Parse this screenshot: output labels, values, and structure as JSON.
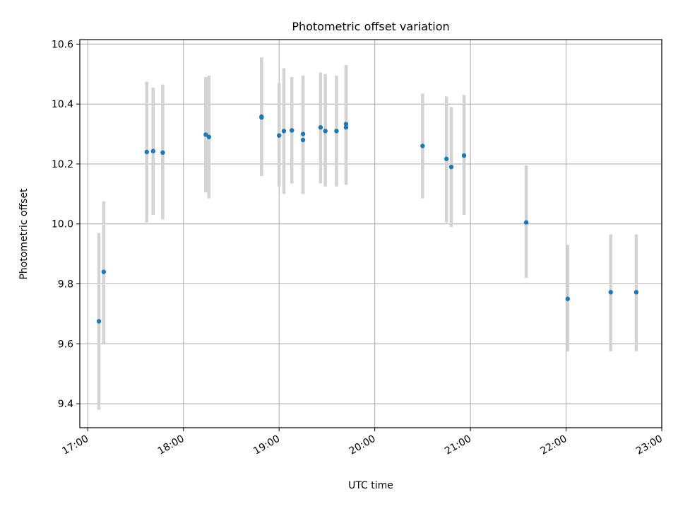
{
  "chart_data": {
    "type": "scatter",
    "title": "Photometric offset variation",
    "xlabel": "UTC time",
    "ylabel": "Photometric offset",
    "x_tick_labels": [
      "17:00",
      "18:00",
      "19:00",
      "20:00",
      "21:00",
      "22:00",
      "23:00"
    ],
    "y_tick_labels": [
      "9.4",
      "9.6",
      "9.8",
      "10.0",
      "10.2",
      "10.4",
      "10.6"
    ],
    "xlim": [
      "16:55",
      "23:00"
    ],
    "ylim": [
      9.32,
      10.615
    ],
    "grid": true,
    "point_color": "#1f77b4",
    "errorbar_color": "#d3d3d3",
    "points": [
      {
        "x": "17:07",
        "y": 9.675,
        "ylow": 9.38,
        "yhigh": 9.97
      },
      {
        "x": "17:10",
        "y": 9.84,
        "ylow": 9.6,
        "yhigh": 10.075
      },
      {
        "x": "17:37",
        "y": 10.24,
        "ylow": 10.005,
        "yhigh": 10.475
      },
      {
        "x": "17:41",
        "y": 10.243,
        "ylow": 10.03,
        "yhigh": 10.455
      },
      {
        "x": "17:47",
        "y": 10.238,
        "ylow": 10.015,
        "yhigh": 10.465
      },
      {
        "x": "18:14",
        "y": 10.298,
        "ylow": 10.105,
        "yhigh": 10.49
      },
      {
        "x": "18:16",
        "y": 10.29,
        "ylow": 10.085,
        "yhigh": 10.495
      },
      {
        "x": "18:49",
        "y": 10.355,
        "ylow": 10.16,
        "yhigh": 10.555
      },
      {
        "x": "18:49",
        "y": 10.358,
        "ylow": 10.16,
        "yhigh": 10.555
      },
      {
        "x": "19:00",
        "y": 10.295,
        "ylow": 10.125,
        "yhigh": 10.47
      },
      {
        "x": "19:03",
        "y": 10.31,
        "ylow": 10.1,
        "yhigh": 10.52
      },
      {
        "x": "19:08",
        "y": 10.312,
        "ylow": 10.135,
        "yhigh": 10.49
      },
      {
        "x": "19:15",
        "y": 10.3,
        "ylow": 10.1,
        "yhigh": 10.495
      },
      {
        "x": "19:15",
        "y": 10.28,
        "ylow": 10.1,
        "yhigh": 10.46
      },
      {
        "x": "19:26",
        "y": 10.322,
        "ylow": 10.135,
        "yhigh": 10.505
      },
      {
        "x": "19:29",
        "y": 10.31,
        "ylow": 10.125,
        "yhigh": 10.5
      },
      {
        "x": "19:36",
        "y": 10.31,
        "ylow": 10.125,
        "yhigh": 10.495
      },
      {
        "x": "19:42",
        "y": 10.322,
        "ylow": 10.13,
        "yhigh": 10.53
      },
      {
        "x": "19:42",
        "y": 10.333,
        "ylow": 10.14,
        "yhigh": 10.53
      },
      {
        "x": "20:30",
        "y": 10.26,
        "ylow": 10.085,
        "yhigh": 10.435
      },
      {
        "x": "20:45",
        "y": 10.217,
        "ylow": 10.005,
        "yhigh": 10.425
      },
      {
        "x": "20:48",
        "y": 10.19,
        "ylow": 9.99,
        "yhigh": 10.39
      },
      {
        "x": "20:56",
        "y": 10.228,
        "ylow": 10.03,
        "yhigh": 10.43
      },
      {
        "x": "21:35",
        "y": 10.005,
        "ylow": 9.82,
        "yhigh": 10.195
      },
      {
        "x": "22:01",
        "y": 9.75,
        "ylow": 9.575,
        "yhigh": 9.93
      },
      {
        "x": "22:28",
        "y": 9.772,
        "ylow": 9.575,
        "yhigh": 9.965
      },
      {
        "x": "22:44",
        "y": 9.772,
        "ylow": 9.575,
        "yhigh": 9.965
      }
    ]
  }
}
